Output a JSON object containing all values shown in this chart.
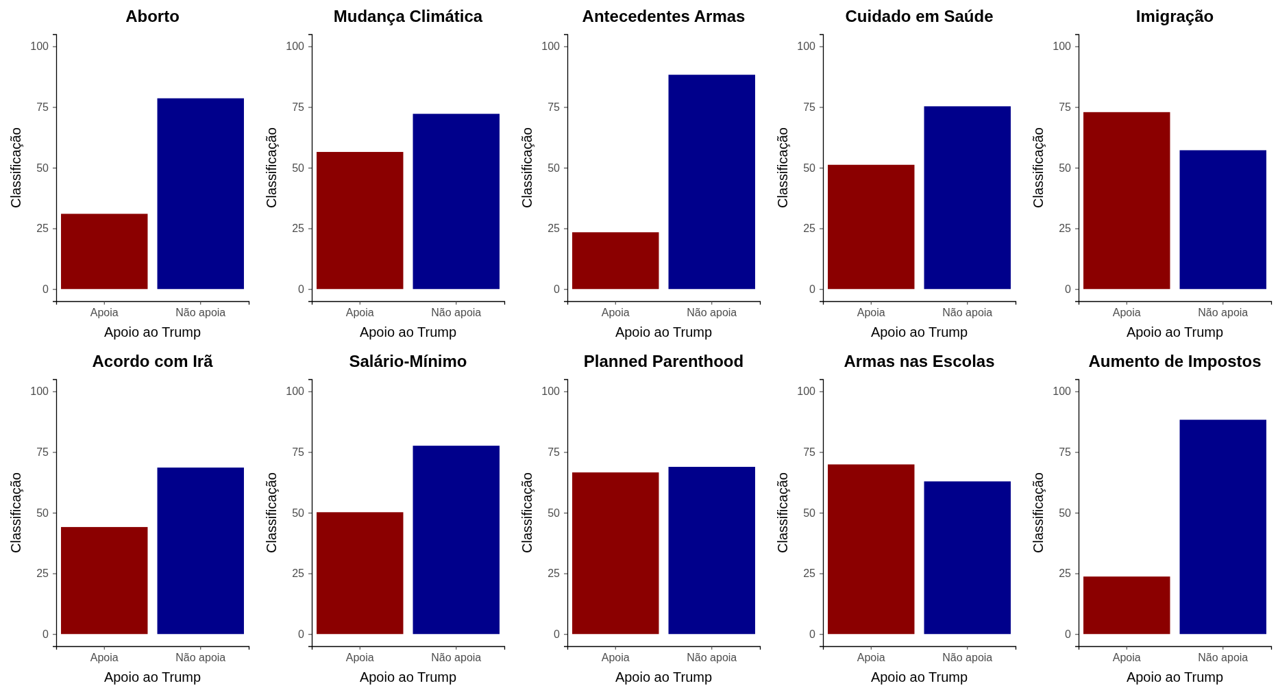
{
  "chart_data": [
    {
      "type": "bar",
      "title": "Aborto",
      "xlabel": "Apoio ao Trump",
      "ylabel": "Classificação",
      "categories": [
        "Apoia",
        "Não apoia"
      ],
      "values": [
        31,
        78.6
      ],
      "colors": [
        "#8b0000",
        "#00008b"
      ],
      "ylim": [
        -5,
        105
      ],
      "yticks": [
        0,
        25,
        50,
        75,
        100
      ],
      "grid": false,
      "legend": false
    },
    {
      "type": "bar",
      "title": "Mudança Climática",
      "xlabel": "Apoio ao Trump",
      "ylabel": "Classificação",
      "categories": [
        "Apoia",
        "Não apoia"
      ],
      "values": [
        56.5,
        72.2
      ],
      "colors": [
        "#8b0000",
        "#00008b"
      ],
      "ylim": [
        -5,
        105
      ],
      "yticks": [
        0,
        25,
        50,
        75,
        100
      ],
      "grid": false,
      "legend": false
    },
    {
      "type": "bar",
      "title": "Antecedentes Armas",
      "xlabel": "Apoio ao Trump",
      "ylabel": "Classificação",
      "categories": [
        "Apoia",
        "Não apoia"
      ],
      "values": [
        23.4,
        88.3
      ],
      "colors": [
        "#8b0000",
        "#00008b"
      ],
      "ylim": [
        -5,
        105
      ],
      "yticks": [
        0,
        25,
        50,
        75,
        100
      ],
      "grid": false,
      "legend": false
    },
    {
      "type": "bar",
      "title": "Cuidado em Saúde",
      "xlabel": "Apoio ao Trump",
      "ylabel": "Classificação",
      "categories": [
        "Apoia",
        "Não apoia"
      ],
      "values": [
        51.2,
        75.3
      ],
      "colors": [
        "#8b0000",
        "#00008b"
      ],
      "ylim": [
        -5,
        105
      ],
      "yticks": [
        0,
        25,
        50,
        75,
        100
      ],
      "grid": false,
      "legend": false
    },
    {
      "type": "bar",
      "title": "Imigração",
      "xlabel": "Apoio ao Trump",
      "ylabel": "Classificação",
      "categories": [
        "Apoia",
        "Não apoia"
      ],
      "values": [
        72.9,
        57.2
      ],
      "colors": [
        "#8b0000",
        "#00008b"
      ],
      "ylim": [
        -5,
        105
      ],
      "yticks": [
        0,
        25,
        50,
        75,
        100
      ],
      "grid": false,
      "legend": false
    },
    {
      "type": "bar",
      "title": "Acordo com Irã",
      "xlabel": "Apoio ao Trump",
      "ylabel": "Classificação",
      "categories": [
        "Apoia",
        "Não apoia"
      ],
      "values": [
        44.1,
        68.6
      ],
      "colors": [
        "#8b0000",
        "#00008b"
      ],
      "ylim": [
        -5,
        105
      ],
      "yticks": [
        0,
        25,
        50,
        75,
        100
      ],
      "grid": false,
      "legend": false
    },
    {
      "type": "bar",
      "title": "Salário-Mínimo",
      "xlabel": "Apoio ao Trump",
      "ylabel": "Classificação",
      "categories": [
        "Apoia",
        "Não apoia"
      ],
      "values": [
        50.2,
        77.6
      ],
      "colors": [
        "#8b0000",
        "#00008b"
      ],
      "ylim": [
        -5,
        105
      ],
      "yticks": [
        0,
        25,
        50,
        75,
        100
      ],
      "grid": false,
      "legend": false
    },
    {
      "type": "bar",
      "title": "Planned Parenthood",
      "xlabel": "Apoio ao Trump",
      "ylabel": "Classificação",
      "categories": [
        "Apoia",
        "Não apoia"
      ],
      "values": [
        66.6,
        68.9
      ],
      "colors": [
        "#8b0000",
        "#00008b"
      ],
      "ylim": [
        -5,
        105
      ],
      "yticks": [
        0,
        25,
        50,
        75,
        100
      ],
      "grid": false,
      "legend": false
    },
    {
      "type": "bar",
      "title": "Armas nas Escolas",
      "xlabel": "Apoio ao Trump",
      "ylabel": "Classificação",
      "categories": [
        "Apoia",
        "Não apoia"
      ],
      "values": [
        69.9,
        62.9
      ],
      "colors": [
        "#8b0000",
        "#00008b"
      ],
      "ylim": [
        -5,
        105
      ],
      "yticks": [
        0,
        25,
        50,
        75,
        100
      ],
      "grid": false,
      "legend": false
    },
    {
      "type": "bar",
      "title": "Aumento de Impostos",
      "xlabel": "Apoio ao Trump",
      "ylabel": "Classificação",
      "categories": [
        "Apoia",
        "Não apoia"
      ],
      "values": [
        23.7,
        88.3
      ],
      "colors": [
        "#8b0000",
        "#00008b"
      ],
      "ylim": [
        -5,
        105
      ],
      "yticks": [
        0,
        25,
        50,
        75,
        100
      ],
      "grid": false,
      "legend": false
    }
  ]
}
